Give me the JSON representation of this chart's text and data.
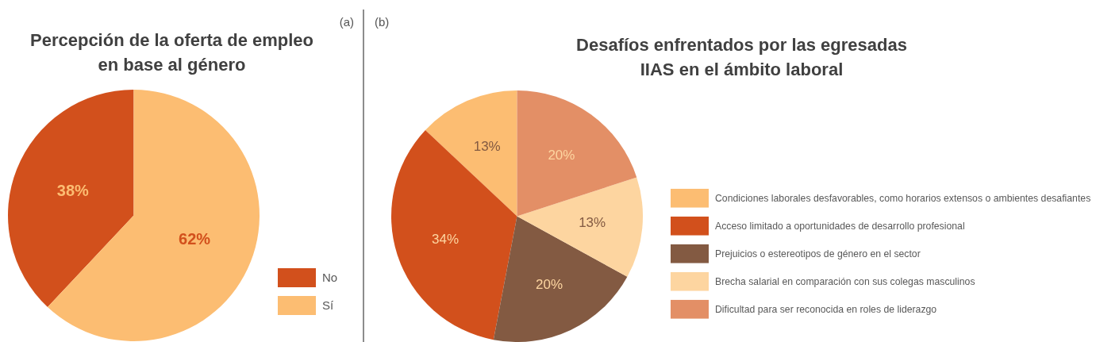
{
  "chart_data": [
    {
      "type": "pie",
      "title": "Percepción de la oferta de empleo\nen base al género",
      "categories": [
        "No",
        "Sí"
      ],
      "values": [
        38,
        62
      ],
      "colors": [
        "#d2501c",
        "#fcbd72"
      ],
      "value_labels": [
        "38%",
        "62%"
      ],
      "legend": "bottom right",
      "annotations": [
        "(a)"
      ]
    },
    {
      "type": "pie",
      "title": "Desafíos enfrentados por las egresadas\nIIAS en el ámbito laboral",
      "categories": [
        "Condiciones laborales desfavorables, como horarios extensos o ambientes desafiantes",
        "Acceso limitado a oportunidades de desarrollo profesional",
        "Prejuicios o estereotipos de género en el sector",
        "Brecha salarial en comparación con sus colegas masculinos",
        "Dificultad para ser reconocida en roles de liderazgo"
      ],
      "values": [
        13,
        34,
        20,
        13,
        20
      ],
      "colors": [
        "#fcbd72",
        "#d2501c",
        "#835a42",
        "#fdd5a0",
        "#e38f66"
      ],
      "value_labels": [
        "13%",
        "34%",
        "20%",
        "13%",
        "20%"
      ],
      "legend": "right",
      "annotations": [
        "(b)"
      ]
    }
  ]
}
